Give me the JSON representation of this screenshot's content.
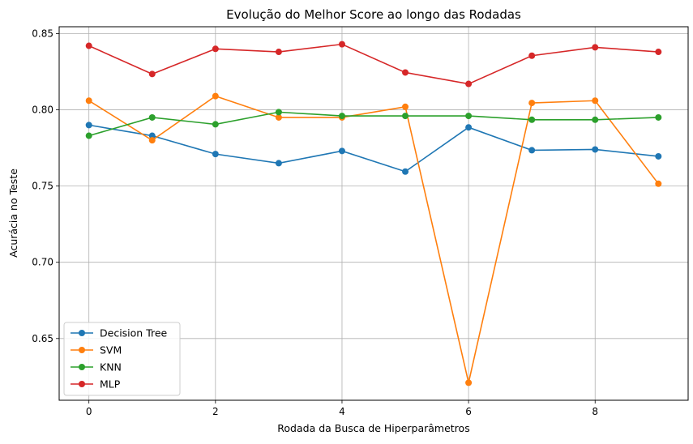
{
  "chart_data": {
    "type": "line",
    "title": "Evolução do Melhor Score ao longo das Rodadas",
    "xlabel": "Rodada da Busca de Hiperparâmetros",
    "ylabel": "Acurácia no Teste",
    "x": [
      0,
      1,
      2,
      3,
      4,
      5,
      6,
      7,
      8,
      9
    ],
    "xlim": [
      -0.47,
      9.47
    ],
    "ylim": [
      0.6095,
      0.8545
    ],
    "xticks": [
      0,
      2,
      4,
      6,
      8
    ],
    "yticks": [
      0.65,
      0.7,
      0.75,
      0.8,
      0.85
    ],
    "xtick_labels": [
      "0",
      "2",
      "4",
      "6",
      "8"
    ],
    "ytick_labels": [
      "0.65",
      "0.70",
      "0.75",
      "0.80",
      "0.85"
    ],
    "grid": true,
    "legend_position": "lower-left",
    "series": [
      {
        "name": "Decision Tree",
        "color": "#1f77b4",
        "values": [
          0.79,
          0.783,
          0.771,
          0.765,
          0.773,
          0.7595,
          0.7885,
          0.7735,
          0.774,
          0.7695
        ]
      },
      {
        "name": "SVM",
        "color": "#ff7f0e",
        "values": [
          0.806,
          0.78,
          0.809,
          0.795,
          0.795,
          0.802,
          0.621,
          0.8045,
          0.806,
          0.7515
        ]
      },
      {
        "name": "KNN",
        "color": "#2ca02c",
        "values": [
          0.783,
          0.795,
          0.7905,
          0.7985,
          0.796,
          0.796,
          0.796,
          0.7935,
          0.7935,
          0.795
        ]
      },
      {
        "name": "MLP",
        "color": "#d62728",
        "values": [
          0.842,
          0.8235,
          0.84,
          0.838,
          0.843,
          0.8245,
          0.817,
          0.8355,
          0.841,
          0.838
        ]
      }
    ]
  }
}
